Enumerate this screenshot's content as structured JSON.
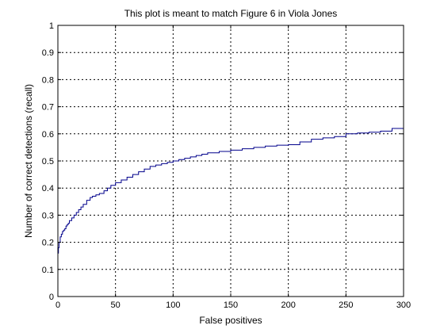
{
  "chart_data": {
    "type": "line",
    "title": "This plot is meant to match Figure 6 in Viola Jones",
    "xlabel": "False positives",
    "ylabel": "Number of correct detections (recall)",
    "xlim": [
      0,
      300
    ],
    "ylim": [
      0,
      1
    ],
    "xticks": [
      0,
      50,
      100,
      150,
      200,
      250,
      300
    ],
    "xtick_labels": [
      "0",
      "50",
      "100",
      "150",
      "200",
      "250",
      "300"
    ],
    "yticks": [
      0,
      0.1,
      0.2,
      0.3,
      0.4,
      0.5,
      0.6,
      0.7,
      0.8,
      0.9,
      1
    ],
    "ytick_labels": [
      "0",
      "0.1",
      "0.2",
      "0.3",
      "0.4",
      "0.5",
      "0.6",
      "0.7",
      "0.8",
      "0.9",
      "1"
    ],
    "grid": true,
    "series": [
      {
        "color": "#00008b",
        "style": "stairs",
        "x": [
          0,
          0.5,
          1,
          2,
          3,
          4,
          5,
          6,
          7,
          8,
          9,
          10,
          12,
          14,
          16,
          18,
          20,
          22,
          25,
          28,
          30,
          33,
          36,
          40,
          43,
          46,
          50,
          55,
          60,
          65,
          70,
          75,
          80,
          85,
          90,
          95,
          100,
          105,
          110,
          115,
          120,
          125,
          130,
          140,
          150,
          160,
          170,
          180,
          190,
          200,
          210,
          220,
          230,
          240,
          250,
          260,
          270,
          280,
          290,
          300
        ],
        "y": [
          0.16,
          0.18,
          0.2,
          0.22,
          0.23,
          0.24,
          0.245,
          0.25,
          0.26,
          0.265,
          0.27,
          0.28,
          0.29,
          0.3,
          0.31,
          0.32,
          0.33,
          0.34,
          0.355,
          0.365,
          0.37,
          0.375,
          0.38,
          0.39,
          0.4,
          0.41,
          0.42,
          0.43,
          0.44,
          0.45,
          0.46,
          0.47,
          0.48,
          0.485,
          0.49,
          0.495,
          0.5,
          0.505,
          0.51,
          0.515,
          0.52,
          0.525,
          0.53,
          0.535,
          0.54,
          0.545,
          0.55,
          0.555,
          0.558,
          0.56,
          0.57,
          0.58,
          0.585,
          0.59,
          0.6,
          0.603,
          0.606,
          0.61,
          0.62,
          0.63
        ]
      }
    ]
  }
}
